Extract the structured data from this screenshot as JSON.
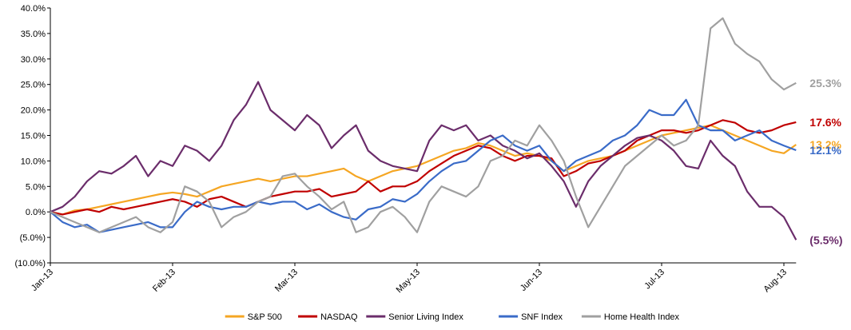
{
  "chart_data": {
    "type": "line",
    "categories": [
      "Jan-13",
      null,
      null,
      null,
      null,
      null,
      null,
      null,
      null,
      null,
      "Feb-13",
      null,
      null,
      null,
      null,
      null,
      null,
      null,
      null,
      null,
      "Mar-13",
      null,
      null,
      null,
      null,
      null,
      null,
      null,
      null,
      null,
      "May-13",
      null,
      null,
      null,
      null,
      null,
      null,
      null,
      null,
      null,
      "Jun-13",
      null,
      null,
      null,
      null,
      null,
      null,
      null,
      null,
      null,
      "Jul-13",
      null,
      null,
      null,
      null,
      null,
      null,
      null,
      null,
      null,
      "Aug-13",
      null
    ],
    "ylim": [
      -10,
      40
    ],
    "yticks": [
      {
        "value": -10,
        "label": "(10.0%)"
      },
      {
        "value": -5,
        "label": "(5.0%)"
      },
      {
        "value": 0,
        "label": "0.0%"
      },
      {
        "value": 5,
        "label": "5.0%"
      },
      {
        "value": 10,
        "label": "10.0%"
      },
      {
        "value": 15,
        "label": "15.0%"
      },
      {
        "value": 20,
        "label": "20.0%"
      },
      {
        "value": 25,
        "label": "25.0%"
      },
      {
        "value": 30,
        "label": "30.0%"
      },
      {
        "value": 35,
        "label": "35.0%"
      },
      {
        "value": 40,
        "label": "40.0%"
      }
    ],
    "grid": false,
    "legend": "bottom",
    "series": [
      {
        "name": "S&P 500",
        "color": "#f5a623",
        "last_label": "13.2%",
        "values": [
          0,
          -0.5,
          0.3,
          0.5,
          1,
          1.5,
          2,
          2.5,
          3,
          3.5,
          3.8,
          3.5,
          3,
          4,
          5,
          5.5,
          6,
          6.5,
          6,
          6.5,
          7,
          7,
          7.5,
          8,
          8.5,
          7,
          6,
          7,
          8,
          8.5,
          9,
          10,
          11,
          12,
          12.5,
          13.5,
          13,
          12,
          11,
          11.5,
          11,
          10,
          8,
          9,
          10,
          10.5,
          11,
          12,
          13,
          14,
          15,
          15.5,
          16,
          16.5,
          17,
          16,
          15,
          14,
          13,
          12,
          11.5,
          13.2
        ]
      },
      {
        "name": "NASDAQ",
        "color": "#c00000",
        "last_label": "17.6%",
        "values": [
          0,
          -0.5,
          0,
          0.5,
          0,
          1,
          0.5,
          1,
          1.5,
          2,
          2.5,
          2,
          1,
          2.5,
          3,
          2,
          1,
          2,
          3,
          3.5,
          4,
          4,
          4.5,
          3,
          3.5,
          4,
          6,
          4,
          5,
          5,
          6,
          8,
          9.5,
          11,
          12,
          13,
          12.5,
          11,
          10,
          11,
          11,
          10.5,
          7,
          8,
          9.5,
          10,
          11,
          12,
          14,
          15,
          16,
          16,
          15.5,
          16,
          17,
          18,
          17.5,
          16,
          15.5,
          16,
          17,
          17.6
        ]
      },
      {
        "name": "Senior Living Index",
        "color": "#6b2d6b",
        "last_label": "(5.5%)",
        "values": [
          0,
          1,
          3,
          6,
          8,
          7.5,
          9,
          11,
          7,
          10,
          9,
          13,
          12,
          10,
          13,
          18,
          21,
          25.5,
          20,
          18,
          16,
          19,
          17,
          12.5,
          15,
          17,
          12,
          10,
          9,
          8.5,
          8,
          14,
          17,
          16,
          17,
          14,
          15,
          13,
          12,
          10.5,
          11.5,
          9,
          6,
          1,
          6,
          9,
          11,
          13,
          14.5,
          15,
          14,
          12,
          9,
          8.5,
          14,
          11,
          9,
          4,
          1,
          1,
          -1,
          -5.5
        ]
      },
      {
        "name": "SNF Index",
        "color": "#3a6bc8",
        "last_label": "12.1%",
        "values": [
          0,
          -2,
          -3,
          -2.5,
          -4,
          -3.5,
          -3,
          -2.5,
          -2,
          -3,
          -3,
          0,
          2,
          1,
          0.5,
          1,
          1,
          2,
          1.5,
          2,
          2,
          0.5,
          1.5,
          0,
          -1,
          -1.5,
          0.5,
          1,
          2.5,
          2,
          3.5,
          6,
          8,
          9.5,
          10,
          12,
          14,
          15,
          13,
          12,
          13,
          10,
          8,
          10,
          11,
          12,
          14,
          15,
          17,
          20,
          19,
          19,
          22,
          17,
          16,
          16,
          14,
          15,
          16,
          14,
          13,
          12.1
        ]
      },
      {
        "name": "Home Health Index",
        "color": "#a0a0a0",
        "last_label": "25.3%",
        "values": [
          0,
          -1,
          -2,
          -3,
          -4,
          -3,
          -2,
          -1,
          -3,
          -4,
          -2,
          5,
          4,
          2,
          -3,
          -1,
          0,
          2,
          3,
          7,
          7.5,
          5,
          3,
          0.5,
          2,
          -4,
          -3,
          0,
          1,
          -1,
          -4,
          2,
          5,
          4,
          3,
          5,
          10,
          11,
          14,
          13,
          17,
          14,
          10,
          3,
          -3,
          1,
          5,
          9,
          11,
          13,
          15,
          13,
          14,
          17,
          36,
          38,
          33,
          31,
          29.5,
          26,
          24,
          25.3
        ]
      }
    ]
  }
}
